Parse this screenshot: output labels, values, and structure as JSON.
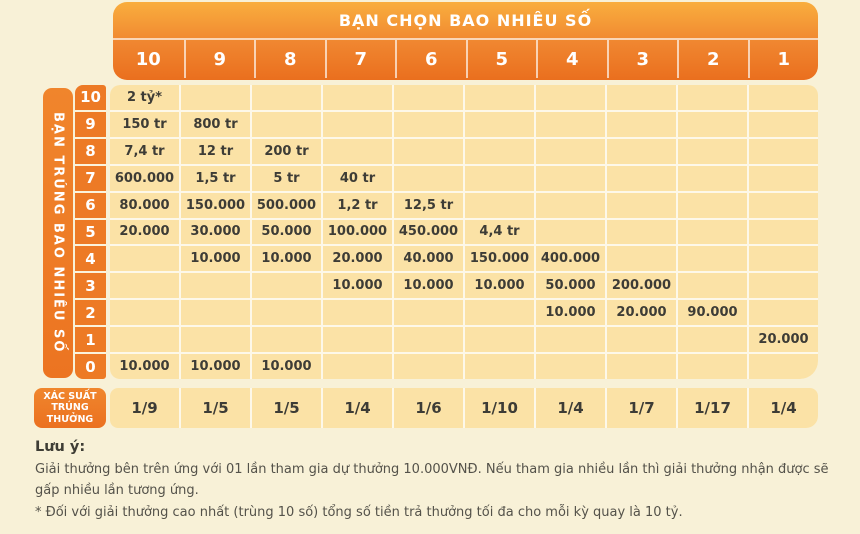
{
  "colors": {
    "background": "#f8f1d7",
    "cell_yellow": "#fbe2a6",
    "grid_line": "#fdf8e9",
    "orange_gradient_top": "#f9ae3e",
    "orange_gradient_bottom": "#ea6f1e",
    "orange_flat": "#ed7a25",
    "cell_text": "#3d3c36",
    "note_text": "#54524a"
  },
  "top_header": {
    "title": "BẠN CHỌN BAO NHIÊU SỐ",
    "columns": [
      "10",
      "9",
      "8",
      "7",
      "6",
      "5",
      "4",
      "3",
      "2",
      "1"
    ]
  },
  "left_header": {
    "title": "BẠN TRÚNG BAO NHIÊU SỐ",
    "rows": [
      "10",
      "9",
      "8",
      "7",
      "6",
      "5",
      "4",
      "3",
      "2",
      "1",
      "0"
    ]
  },
  "prize_table": {
    "rows": [
      {
        "match": "10",
        "values": [
          "2 tỷ*",
          "",
          "",
          "",
          "",
          "",
          "",
          "",
          "",
          ""
        ]
      },
      {
        "match": "9",
        "values": [
          "150 tr",
          "800 tr",
          "",
          "",
          "",
          "",
          "",
          "",
          "",
          ""
        ]
      },
      {
        "match": "8",
        "values": [
          "7,4 tr",
          "12 tr",
          "200 tr",
          "",
          "",
          "",
          "",
          "",
          "",
          ""
        ]
      },
      {
        "match": "7",
        "values": [
          "600.000",
          "1,5 tr",
          "5 tr",
          "40 tr",
          "",
          "",
          "",
          "",
          "",
          ""
        ]
      },
      {
        "match": "6",
        "values": [
          "80.000",
          "150.000",
          "500.000",
          "1,2 tr",
          "12,5 tr",
          "",
          "",
          "",
          "",
          ""
        ]
      },
      {
        "match": "5",
        "values": [
          "20.000",
          "30.000",
          "50.000",
          "100.000",
          "450.000",
          "4,4 tr",
          "",
          "",
          "",
          ""
        ]
      },
      {
        "match": "4",
        "values": [
          "",
          "10.000",
          "10.000",
          "20.000",
          "40.000",
          "150.000",
          "400.000",
          "",
          "",
          ""
        ]
      },
      {
        "match": "3",
        "values": [
          "",
          "",
          "",
          "10.000",
          "10.000",
          "10.000",
          "50.000",
          "200.000",
          "",
          ""
        ]
      },
      {
        "match": "2",
        "values": [
          "",
          "",
          "",
          "",
          "",
          "",
          "10.000",
          "20.000",
          "90.000",
          ""
        ]
      },
      {
        "match": "1",
        "values": [
          "",
          "",
          "",
          "",
          "",
          "",
          "",
          "",
          "",
          "20.000"
        ]
      },
      {
        "match": "0",
        "values": [
          "10.000",
          "10.000",
          "10.000",
          "",
          "",
          "",
          "",
          "",
          "",
          ""
        ]
      }
    ]
  },
  "probability": {
    "label": "XÁC SUẤT TRÚNG THƯỞNG",
    "label_lines": [
      "XÁC SUẤT",
      "TRÚNG",
      "THƯỞNG"
    ],
    "values": [
      "1/9",
      "1/5",
      "1/5",
      "1/4",
      "1/6",
      "1/10",
      "1/4",
      "1/7",
      "1/17",
      "1/4"
    ]
  },
  "notes": {
    "title": "Lưu ý:",
    "body": "Giải thưởng bên trên ứng với 01 lần tham gia dự thưởng 10.000VNĐ. Nếu tham gia nhiều lần thì giải thưởng nhận được sẽ gấp nhiều lần tương ứng.",
    "asterisk": "* Đối với giải thưởng cao nhất (trùng 10 số) tổng số tiền trả thưởng tối đa cho mỗi kỳ quay là 10 tỷ."
  }
}
